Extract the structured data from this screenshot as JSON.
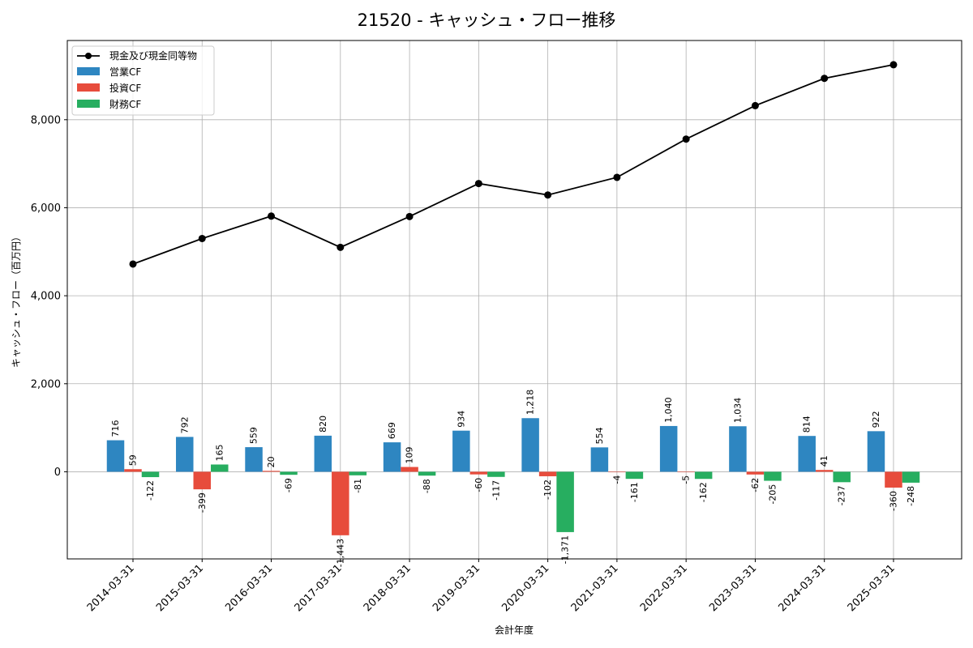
{
  "chart_data": {
    "type": "bar",
    "title": "21520 - キャッシュ・フロー推移",
    "xlabel": "会計年度",
    "ylabel": "キャッシュ・フロー（百万円）",
    "categories": [
      "2014-03-31",
      "2015-03-31",
      "2016-03-31",
      "2017-03-31",
      "2018-03-31",
      "2019-03-31",
      "2020-03-31",
      "2021-03-31",
      "2022-03-31",
      "2023-03-31",
      "2024-03-31",
      "2025-03-31"
    ],
    "ylim": [
      -1980,
      9800
    ],
    "yticks": [
      0,
      2000,
      4000,
      6000,
      8000
    ],
    "grid": true,
    "legend_position": "top-left",
    "series": [
      {
        "name": "営業CF",
        "kind": "bar",
        "color": "#2e86c1",
        "values": [
          716,
          792,
          559,
          820,
          669,
          934,
          1218,
          554,
          1040,
          1034,
          814,
          922
        ],
        "labels": [
          "716",
          "792",
          "559",
          "820",
          "669",
          "934",
          "1,218",
          "554",
          "1,040",
          "1,034",
          "814",
          "922"
        ]
      },
      {
        "name": "投資CF",
        "kind": "bar",
        "color": "#e74c3c",
        "values": [
          59,
          -399,
          20,
          -1443,
          109,
          -60,
          -102,
          -4,
          -5,
          -62,
          41,
          -360
        ],
        "labels": [
          "59",
          "-399",
          "20",
          "-1,443",
          "109",
          "-60",
          "-102",
          "-4",
          "-5",
          "-62",
          "41",
          "-360"
        ]
      },
      {
        "name": "財務CF",
        "kind": "bar",
        "color": "#27ae60",
        "values": [
          -122,
          165,
          -69,
          -81,
          -88,
          -117,
          -1371,
          -161,
          -162,
          -205,
          -237,
          -248
        ],
        "labels": [
          "-122",
          "165",
          "-69",
          "-81",
          "-88",
          "-117",
          "-1,371",
          "-161",
          "-162",
          "-205",
          "-237",
          "-248"
        ]
      },
      {
        "name": "現金及び現金同等物",
        "kind": "line",
        "color": "#000000",
        "values": [
          4720,
          5300,
          5810,
          5100,
          5800,
          6550,
          6290,
          6690,
          7560,
          8320,
          8940,
          9250
        ]
      }
    ]
  }
}
